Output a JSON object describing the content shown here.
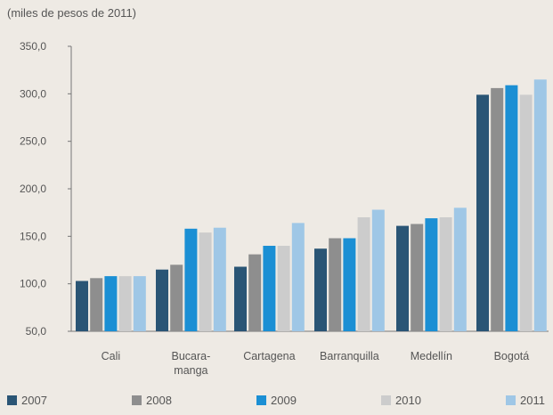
{
  "chart_data": {
    "type": "bar",
    "subtitle": "(miles de pesos de 2011)",
    "categories": [
      [
        "Cali"
      ],
      [
        "Bucara-",
        "manga"
      ],
      [
        "Cartagena"
      ],
      [
        "Barranquilla"
      ],
      [
        "Medellín"
      ],
      [
        "Bogotá"
      ]
    ],
    "series": [
      {
        "name": "2007",
        "color": "#2a5575",
        "values": [
          103,
          115,
          118,
          137,
          161,
          299
        ]
      },
      {
        "name": "2008",
        "color": "#8e8e8e",
        "values": [
          106,
          120,
          131,
          148,
          163,
          306
        ]
      },
      {
        "name": "2009",
        "color": "#1b8fd4",
        "values": [
          108,
          158,
          140,
          148,
          169,
          309
        ]
      },
      {
        "name": "2010",
        "color": "#cccccc",
        "values": [
          108,
          154,
          140,
          170,
          170,
          299
        ]
      },
      {
        "name": "2011",
        "color": "#9fc7e6",
        "values": [
          108,
          159,
          164,
          178,
          180,
          315
        ]
      }
    ],
    "ylim": [
      50,
      350
    ],
    "yticks": [
      "50,0",
      "100,0",
      "150,0",
      "200,0",
      "250,0",
      "300,0",
      "350,0"
    ],
    "ytick_values": [
      50,
      100,
      150,
      200,
      250,
      300,
      350
    ],
    "legend_position": "bottom",
    "grid": false
  }
}
